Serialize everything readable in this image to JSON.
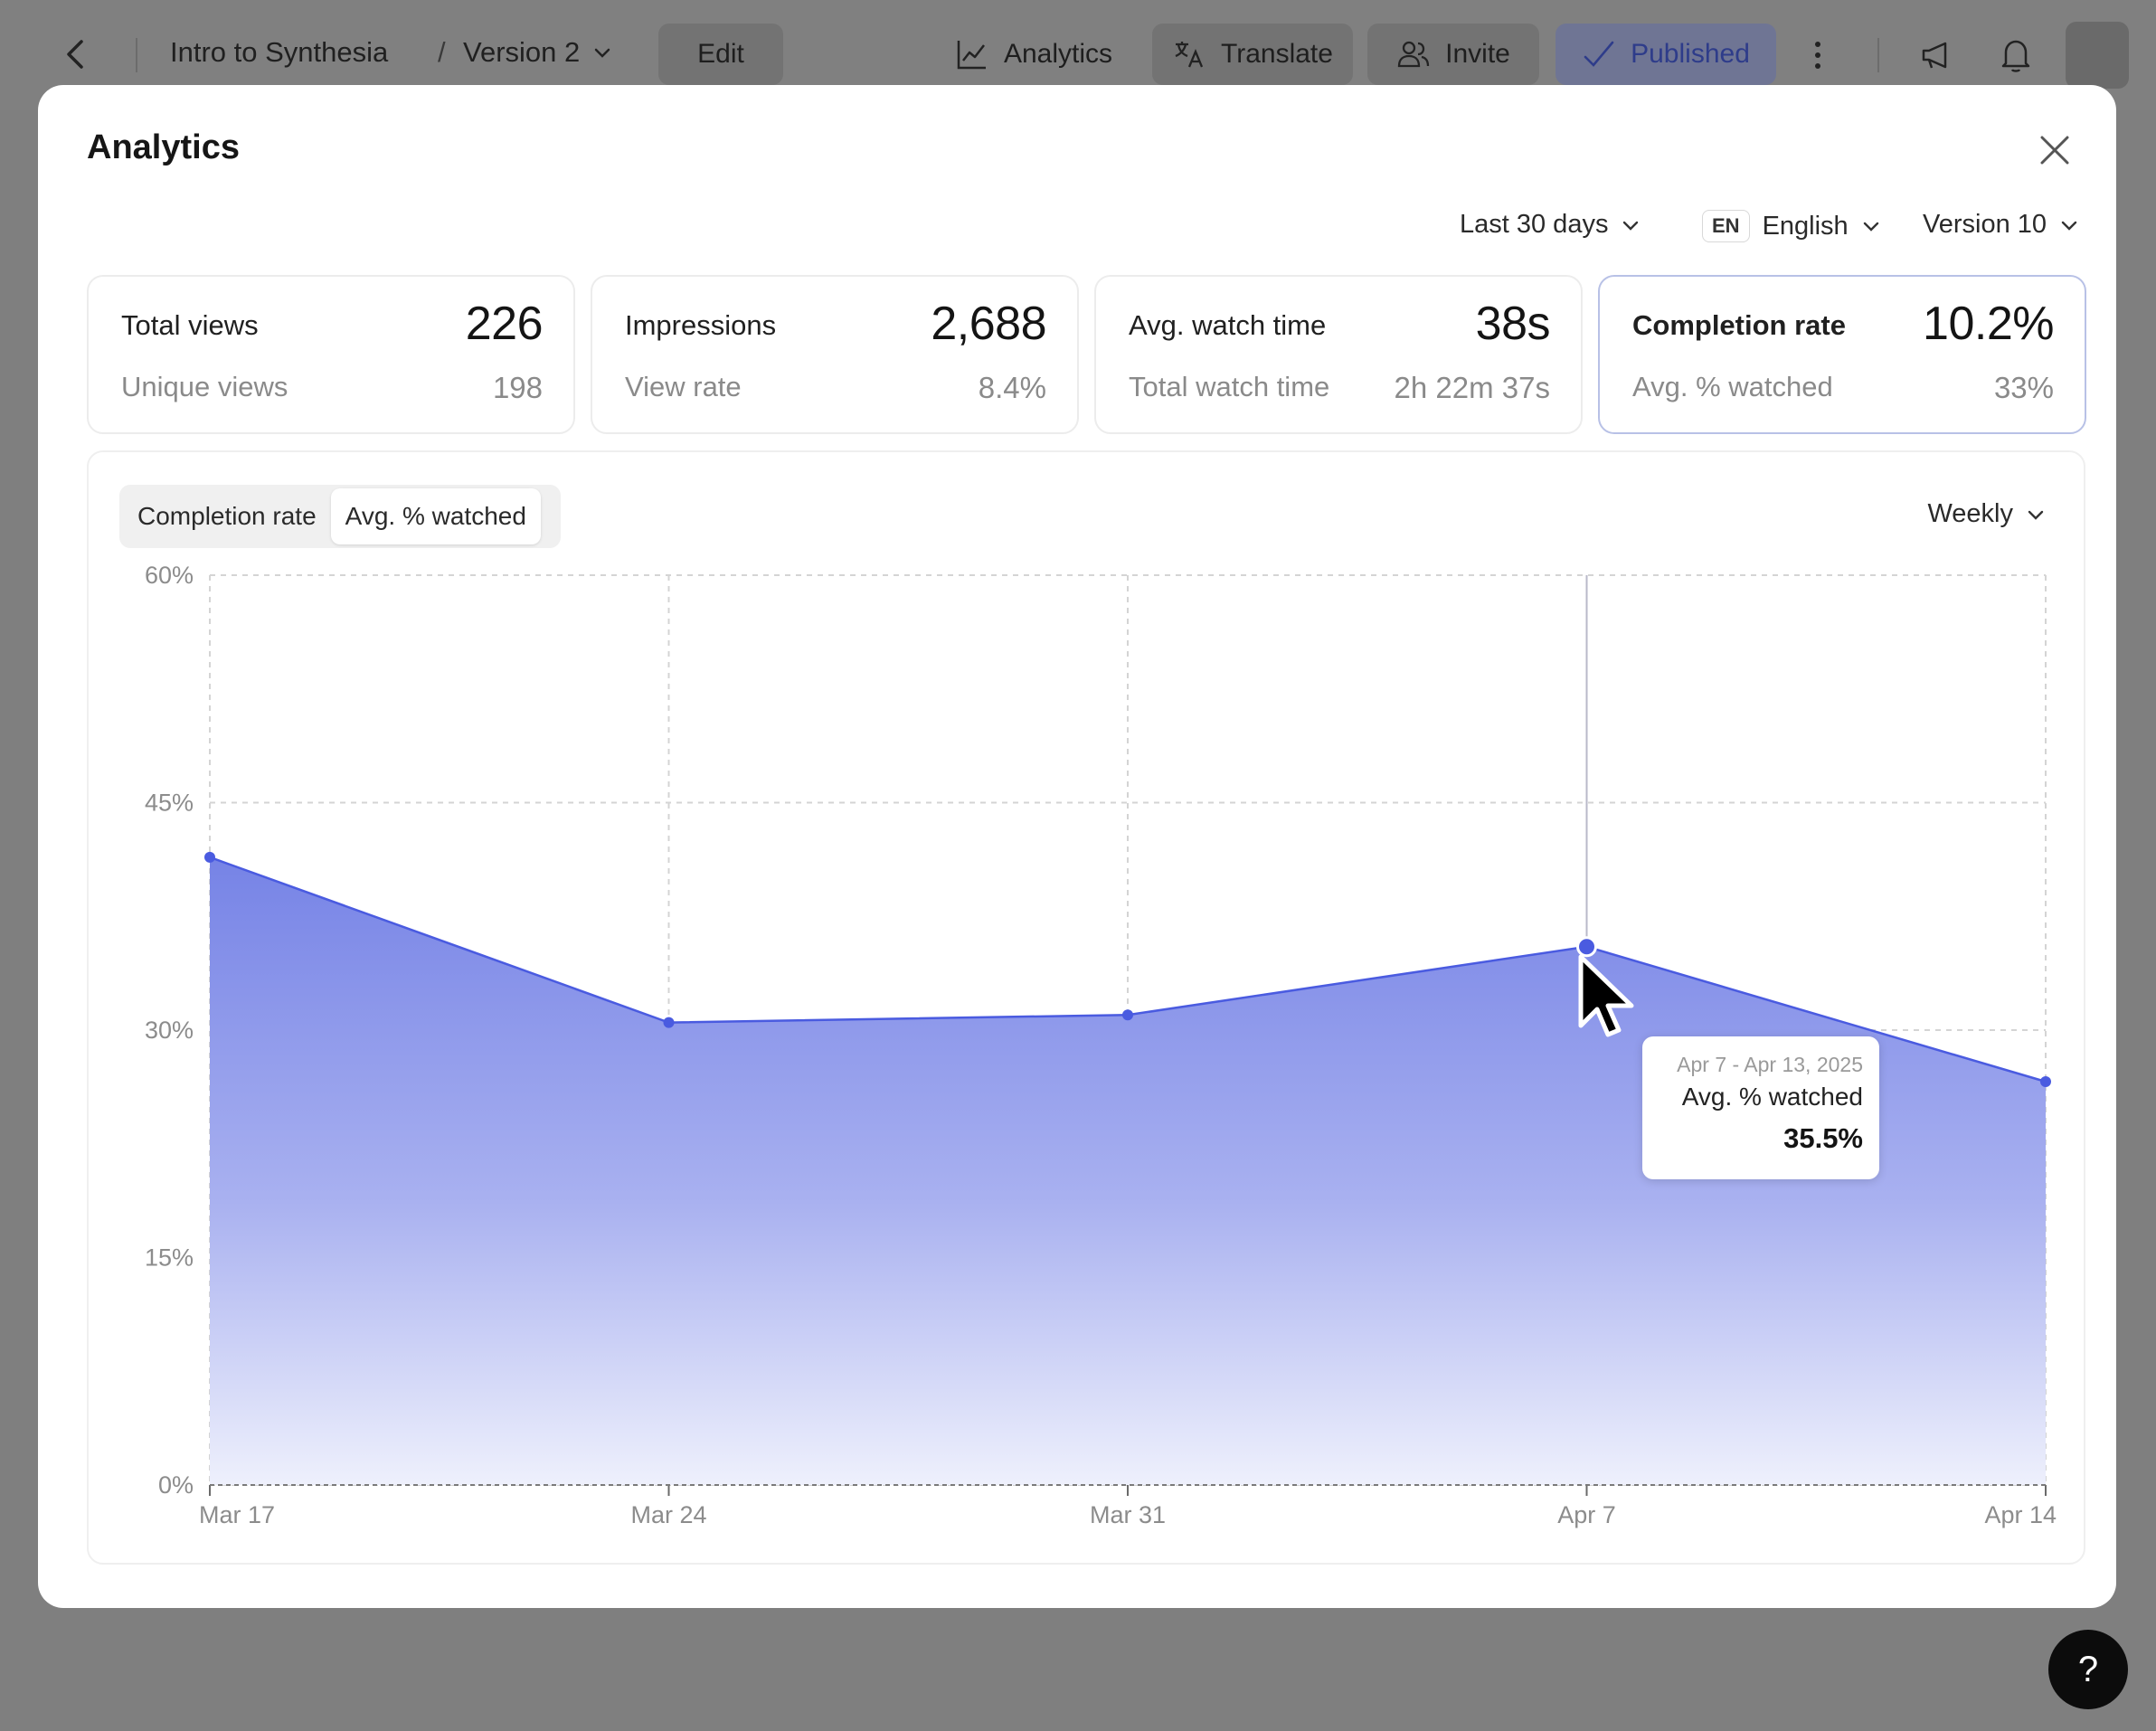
{
  "topbar": {
    "title": "Intro to Synthesia",
    "separator": "/",
    "version": "Version 2",
    "edit_label": "Edit",
    "analytics_label": "Analytics",
    "translate_label": "Translate",
    "invite_label": "Invite",
    "published_label": "Published"
  },
  "modal": {
    "title": "Analytics",
    "filters": {
      "range": "Last 30 days",
      "lang_code": "EN",
      "language": "English",
      "version": "Version 10"
    },
    "cards": [
      {
        "label": "Total views",
        "value": "226",
        "sub_label": "Unique views",
        "sub_value": "198"
      },
      {
        "label": "Impressions",
        "value": "2,688",
        "sub_label": "View rate",
        "sub_value": "8.4%"
      },
      {
        "label": "Avg. watch time",
        "value": "38s",
        "sub_label": "Total watch time",
        "sub_value": "2h 22m 37s"
      },
      {
        "label": "Completion rate",
        "value": "10.2%",
        "sub_label": "Avg. % watched",
        "sub_value": "33%"
      }
    ],
    "toggle": {
      "option_1": "Completion rate",
      "option_2": "Avg. % watched",
      "selected": "Avg. % watched"
    },
    "period": "Weekly",
    "tooltip": {
      "date": "Apr 7 - Apr 13, 2025",
      "series": "Avg. % watched",
      "value": "35.5%"
    }
  },
  "chart_data": {
    "type": "area",
    "categories": [
      "Mar 17",
      "Mar 24",
      "Mar 31",
      "Apr 7",
      "Apr 14"
    ],
    "series": [
      {
        "name": "Avg. % watched",
        "values": [
          41.4,
          30.5,
          31.0,
          35.5,
          26.6
        ]
      }
    ],
    "ylim": [
      0,
      60
    ],
    "yticks": [
      0,
      15,
      30,
      45,
      60
    ],
    "ytick_labels": [
      "0%",
      "15%",
      "30%",
      "45%",
      "60%"
    ],
    "grid": true,
    "highlighted_index": 3,
    "color": "#4a5be0"
  },
  "help": {
    "label": "?"
  }
}
